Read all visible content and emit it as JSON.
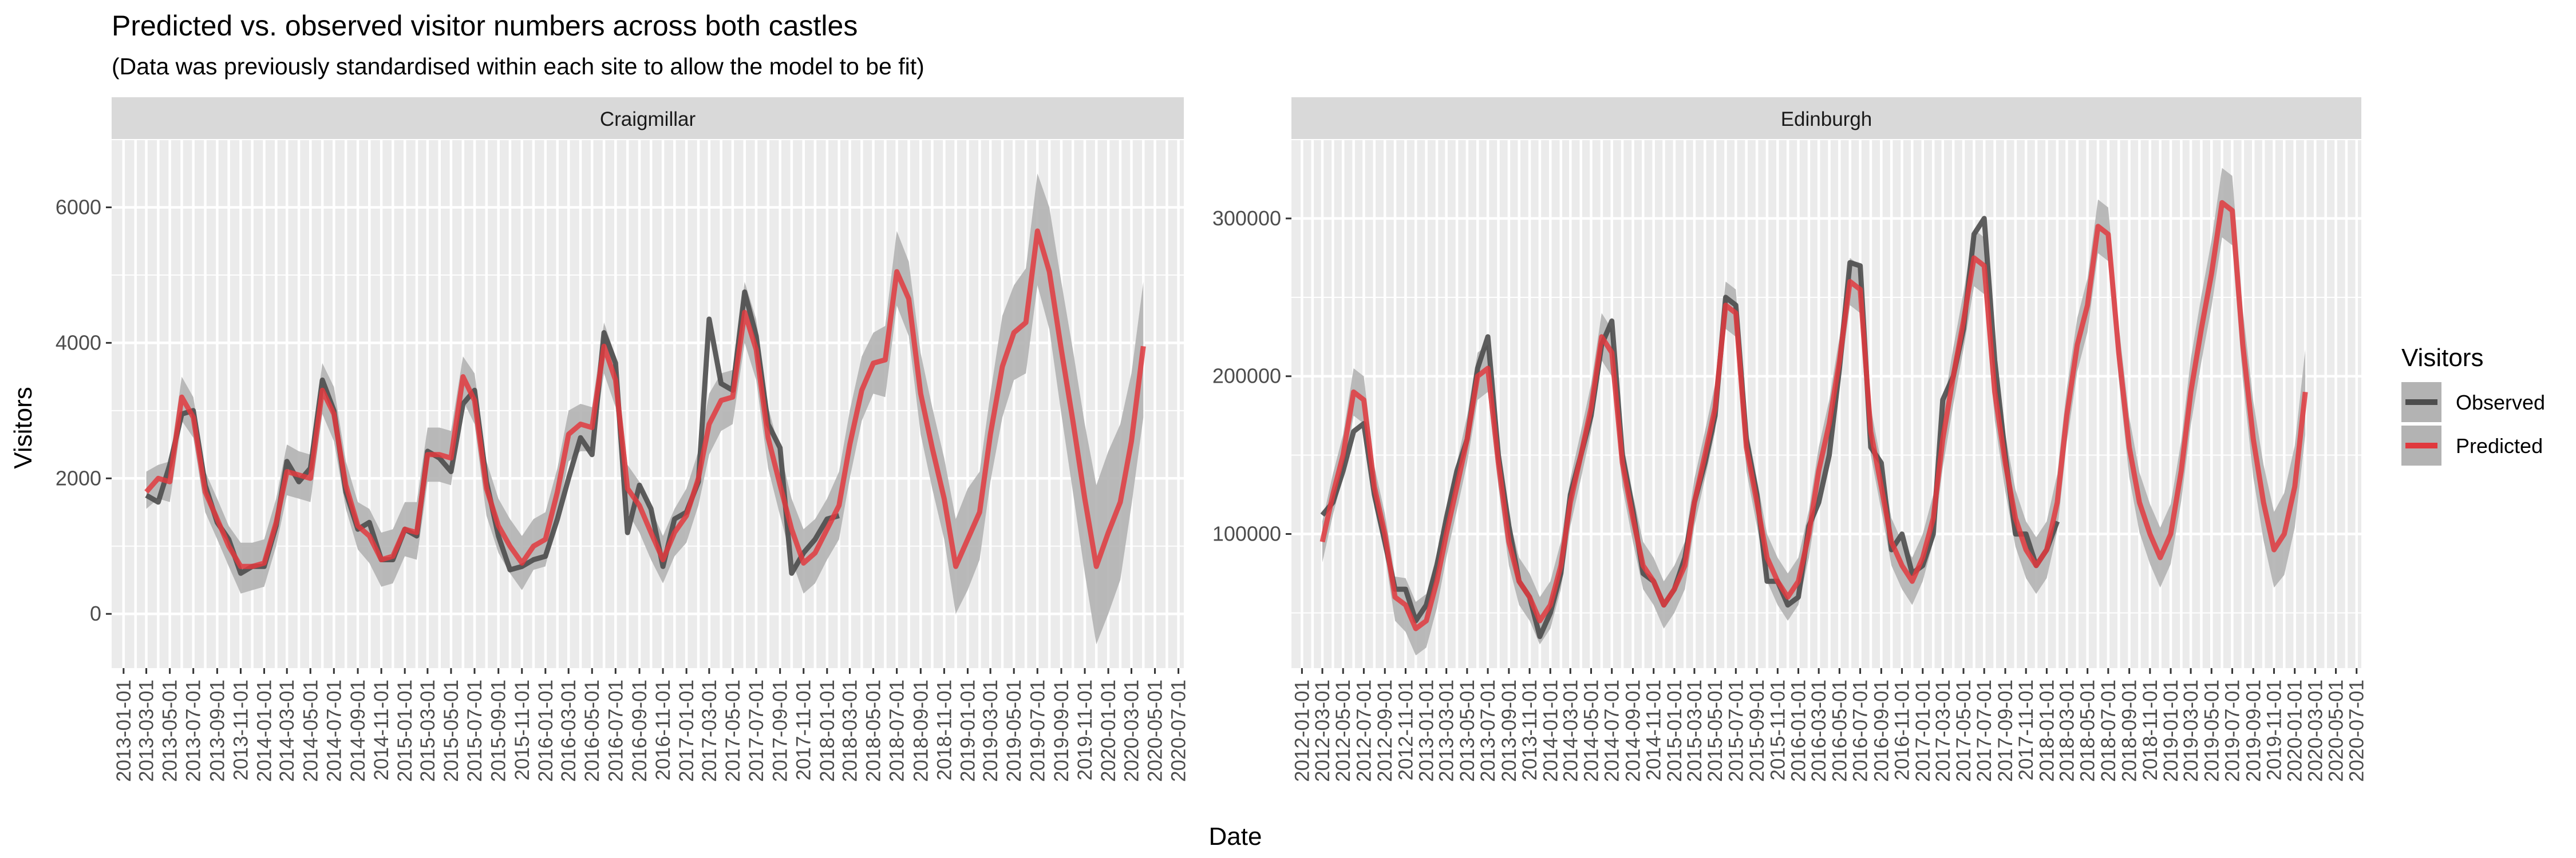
{
  "title": "Predicted vs. observed visitor numbers across both castles",
  "subtitle": "(Data was previously standardised within each site to allow the model to be fit)",
  "xlabel": "Date",
  "ylabel": "Visitors",
  "legend": {
    "title": "Visitors",
    "items": [
      {
        "label": "Observed",
        "color": "#4d4d4d"
      },
      {
        "label": "Predicted",
        "color": "#e0393e"
      }
    ]
  },
  "colors": {
    "panel": "#ebebeb",
    "strip": "#d9d9d9",
    "ribbon": "#b3b3b3",
    "observed": "#4d4d4d",
    "predicted": "#e0393e"
  },
  "chart_data": [
    {
      "type": "line",
      "facet": "Craigmillar",
      "x_start": "2013-01-01",
      "x_range": [
        "2012-12-01",
        "2020-07-15"
      ],
      "x_tick_labels": [
        "2013-01-01",
        "2013-03-01",
        "2013-05-01",
        "2013-07-01",
        "2013-09-01",
        "2013-11-01",
        "2014-01-01",
        "2014-03-01",
        "2014-05-01",
        "2014-07-01",
        "2014-09-01",
        "2014-11-01",
        "2015-01-01",
        "2015-03-01",
        "2015-05-01",
        "2015-07-01",
        "2015-09-01",
        "2015-11-01",
        "2016-01-01",
        "2016-03-01",
        "2016-05-01",
        "2016-07-01",
        "2016-09-01",
        "2016-11-01",
        "2017-01-01",
        "2017-03-01",
        "2017-05-01",
        "2017-07-01",
        "2017-09-01",
        "2017-11-01",
        "2018-01-01",
        "2018-03-01",
        "2018-05-01",
        "2018-07-01",
        "2018-09-01",
        "2018-11-01",
        "2019-01-01",
        "2019-03-01",
        "2019-05-01",
        "2019-07-01",
        "2019-09-01",
        "2019-11-01",
        "2020-01-01",
        "2020-03-01",
        "2020-05-01",
        "2020-07-01"
      ],
      "y_ticks": [
        0,
        2000,
        4000,
        6000
      ],
      "y_tick_labels": [
        "0",
        "2000",
        "4000",
        "6000"
      ],
      "ylim": [
        -800,
        7000
      ],
      "series": [
        {
          "name": "Observed",
          "start": "2013-03-01",
          "values": [
            1750,
            1650,
            2200,
            2950,
            3000,
            1900,
            1350,
            1100,
            600,
            700,
            700,
            1300,
            2250,
            1950,
            2150,
            3450,
            3000,
            1800,
            1250,
            1350,
            800,
            800,
            1250,
            1150,
            2400,
            2300,
            2100,
            3100,
            3300,
            1950,
            1150,
            650,
            700,
            800,
            850,
            1400,
            2000,
            2600,
            2350,
            4150,
            3700,
            1200,
            1900,
            1550,
            700,
            1400,
            1500,
            1950,
            4350,
            3400,
            3300,
            4750,
            4100,
            2800,
            2450,
            600,
            900,
            1100,
            1400,
            1450
          ]
        },
        {
          "name": "Predicted",
          "start": "2013-03-01",
          "values": [
            1800,
            2000,
            1950,
            3200,
            2900,
            1800,
            1400,
            1000,
            700,
            700,
            750,
            1350,
            2100,
            2050,
            2000,
            3300,
            2950,
            1900,
            1300,
            1150,
            800,
            850,
            1250,
            1200,
            2350,
            2350,
            2300,
            3500,
            3150,
            1850,
            1300,
            1000,
            750,
            1000,
            1100,
            1800,
            2650,
            2800,
            2750,
            3950,
            3450,
            1850,
            1600,
            1200,
            800,
            1200,
            1450,
            2000,
            2800,
            3150,
            3200,
            4450,
            3900,
            2600,
            1900,
            1250,
            750,
            900,
            1250,
            1600,
            2500,
            3300,
            3700,
            3750,
            5050,
            4650,
            3250,
            2450,
            1700,
            700,
            1100,
            1500,
            2650,
            3650,
            4150,
            4300,
            5650,
            5050,
            3900,
            2850,
            1700,
            700,
            1200,
            1650,
            2550,
            3950
          ]
        },
        {
          "name": "Ribbon upper",
          "start": "2013-03-01",
          "values": [
            2100,
            2200,
            2250,
            3500,
            3200,
            2100,
            1700,
            1300,
            1050,
            1050,
            1100,
            1700,
            2500,
            2400,
            2350,
            3700,
            3350,
            2250,
            1650,
            1550,
            1200,
            1250,
            1650,
            1650,
            2750,
            2750,
            2700,
            3800,
            3550,
            2250,
            1700,
            1400,
            1150,
            1400,
            1500,
            2150,
            3000,
            3100,
            3050,
            4300,
            3800,
            2200,
            1950,
            1550,
            1150,
            1550,
            1850,
            2400,
            3250,
            3550,
            3600,
            4900,
            4350,
            3050,
            2400,
            1700,
            1250,
            1400,
            1700,
            2100,
            3000,
            3800,
            4150,
            4250,
            5650,
            5200,
            3850,
            3050,
            2300,
            1400,
            1850,
            2100,
            3250,
            4400,
            4850,
            5100,
            6500,
            6000,
            4900,
            3900,
            2800,
            1900,
            2400,
            2800,
            3550,
            4900
          ]
        },
        {
          "name": "Ribbon lower",
          "start": "2013-03-01",
          "values": [
            1550,
            1700,
            1650,
            2850,
            2600,
            1500,
            1100,
            700,
            300,
            350,
            400,
            1000,
            1750,
            1700,
            1650,
            2950,
            2550,
            1550,
            950,
            750,
            400,
            450,
            850,
            800,
            1950,
            1950,
            1900,
            3150,
            2800,
            1450,
            900,
            600,
            350,
            650,
            700,
            1450,
            2250,
            2400,
            2400,
            3550,
            3050,
            1500,
            1200,
            800,
            450,
            850,
            1050,
            1600,
            2350,
            2700,
            2800,
            4000,
            3450,
            2150,
            1450,
            800,
            300,
            450,
            800,
            1100,
            2000,
            2850,
            3250,
            3200,
            4550,
            4100,
            2650,
            1850,
            1100,
            0,
            350,
            800,
            1950,
            2900,
            3450,
            3550,
            4850,
            4200,
            2950,
            1800,
            600,
            -450,
            0,
            500,
            1600,
            2900
          ]
        }
      ]
    },
    {
      "type": "line",
      "facet": "Edinburgh",
      "x_start": "2012-01-01",
      "x_range": [
        "2011-12-01",
        "2020-07-15"
      ],
      "x_tick_labels": [
        "2012-01-01",
        "2012-03-01",
        "2012-05-01",
        "2012-07-01",
        "2012-09-01",
        "2012-11-01",
        "2013-01-01",
        "2013-03-01",
        "2013-05-01",
        "2013-07-01",
        "2013-09-01",
        "2013-11-01",
        "2014-01-01",
        "2014-03-01",
        "2014-05-01",
        "2014-07-01",
        "2014-09-01",
        "2014-11-01",
        "2015-01-01",
        "2015-03-01",
        "2015-05-01",
        "2015-07-01",
        "2015-09-01",
        "2015-11-01",
        "2016-01-01",
        "2016-03-01",
        "2016-05-01",
        "2016-07-01",
        "2016-09-01",
        "2016-11-01",
        "2017-01-01",
        "2017-03-01",
        "2017-05-01",
        "2017-07-01",
        "2017-09-01",
        "2017-11-01",
        "2018-01-01",
        "2018-03-01",
        "2018-05-01",
        "2018-07-01",
        "2018-09-01",
        "2018-11-01",
        "2019-01-01",
        "2019-03-01",
        "2019-05-01",
        "2019-07-01",
        "2019-09-01",
        "2019-11-01",
        "2020-01-01",
        "2020-03-01",
        "2020-05-01",
        "2020-07-01"
      ],
      "y_ticks": [
        100000,
        200000,
        300000
      ],
      "y_tick_labels": [
        "100000",
        "200000",
        "300000"
      ],
      "ylim": [
        15000,
        350000
      ],
      "series": [
        {
          "name": "Observed",
          "start": "2012-03-01",
          "values": [
            112000,
            120000,
            140000,
            165000,
            170000,
            125000,
            95000,
            65000,
            65000,
            45000,
            55000,
            80000,
            110000,
            140000,
            160000,
            205000,
            225000,
            150000,
            105000,
            70000,
            60000,
            35000,
            50000,
            75000,
            125000,
            150000,
            175000,
            220000,
            235000,
            150000,
            115000,
            75000,
            70000,
            55000,
            65000,
            85000,
            120000,
            145000,
            175000,
            250000,
            245000,
            160000,
            125000,
            70000,
            70000,
            55000,
            60000,
            105000,
            120000,
            150000,
            205000,
            272000,
            270000,
            155000,
            145000,
            90000,
            100000,
            75000,
            80000,
            100000,
            185000,
            200000,
            230000,
            290000,
            300000,
            210000,
            150000,
            100000,
            100000,
            80000,
            90000,
            108000
          ]
        },
        {
          "name": "Predicted",
          "start": "2012-03-01",
          "values": [
            95000,
            125000,
            150000,
            190000,
            185000,
            130000,
            100000,
            60000,
            55000,
            40000,
            45000,
            70000,
            100000,
            130000,
            160000,
            200000,
            205000,
            145000,
            95000,
            70000,
            60000,
            45000,
            55000,
            80000,
            120000,
            150000,
            180000,
            225000,
            215000,
            145000,
            110000,
            80000,
            70000,
            55000,
            65000,
            80000,
            120000,
            150000,
            180000,
            245000,
            240000,
            155000,
            120000,
            85000,
            70000,
            60000,
            70000,
            100000,
            140000,
            170000,
            210000,
            260000,
            255000,
            165000,
            130000,
            95000,
            80000,
            70000,
            85000,
            110000,
            160000,
            200000,
            235000,
            275000,
            270000,
            190000,
            145000,
            110000,
            90000,
            80000,
            90000,
            120000,
            175000,
            220000,
            245000,
            295000,
            290000,
            215000,
            155000,
            120000,
            100000,
            85000,
            100000,
            140000,
            190000,
            230000,
            265000,
            310000,
            305000,
            220000,
            160000,
            120000,
            90000,
            100000,
            130000,
            190000
          ]
        },
        {
          "name": "Ribbon upper",
          "start": "2012-03-01",
          "values": [
            108000,
            138000,
            163000,
            205000,
            200000,
            143000,
            113000,
            73000,
            72000,
            57000,
            62000,
            87000,
            115000,
            145000,
            175000,
            215000,
            220000,
            160000,
            110000,
            85000,
            75000,
            60000,
            70000,
            95000,
            135000,
            165000,
            195000,
            240000,
            230000,
            160000,
            125000,
            95000,
            85000,
            70000,
            80000,
            95000,
            135000,
            165000,
            195000,
            260000,
            255000,
            170000,
            135000,
            100000,
            85000,
            75000,
            85000,
            115000,
            155000,
            185000,
            225000,
            275000,
            270000,
            180000,
            145000,
            110000,
            95000,
            85000,
            100000,
            125000,
            178000,
            218000,
            253000,
            293000,
            288000,
            208000,
            163000,
            128000,
            108000,
            98000,
            108000,
            138000,
            192000,
            237000,
            262000,
            312000,
            307000,
            232000,
            174000,
            139000,
            119000,
            104000,
            119000,
            159000,
            211000,
            251000,
            286000,
            332000,
            327000,
            242000,
            184000,
            144000,
            114000,
            126000,
            156000,
            217000
          ]
        },
        {
          "name": "Ribbon lower",
          "start": "2012-03-01",
          "values": [
            82000,
            112000,
            137000,
            175000,
            170000,
            117000,
            87000,
            45000,
            38000,
            23000,
            28000,
            53000,
            85000,
            115000,
            145000,
            185000,
            190000,
            130000,
            80000,
            55000,
            45000,
            30000,
            40000,
            65000,
            105000,
            135000,
            165000,
            210000,
            200000,
            130000,
            95000,
            65000,
            55000,
            40000,
            50000,
            65000,
            105000,
            135000,
            165000,
            230000,
            225000,
            140000,
            105000,
            70000,
            55000,
            45000,
            55000,
            85000,
            125000,
            155000,
            195000,
            245000,
            240000,
            150000,
            115000,
            80000,
            65000,
            55000,
            70000,
            95000,
            142000,
            182000,
            217000,
            257000,
            252000,
            172000,
            127000,
            92000,
            72000,
            62000,
            72000,
            102000,
            158000,
            203000,
            228000,
            278000,
            273000,
            198000,
            136000,
            101000,
            81000,
            66000,
            81000,
            121000,
            169000,
            209000,
            244000,
            288000,
            283000,
            198000,
            136000,
            96000,
            66000,
            74000,
            104000,
            163000
          ]
        }
      ]
    }
  ]
}
